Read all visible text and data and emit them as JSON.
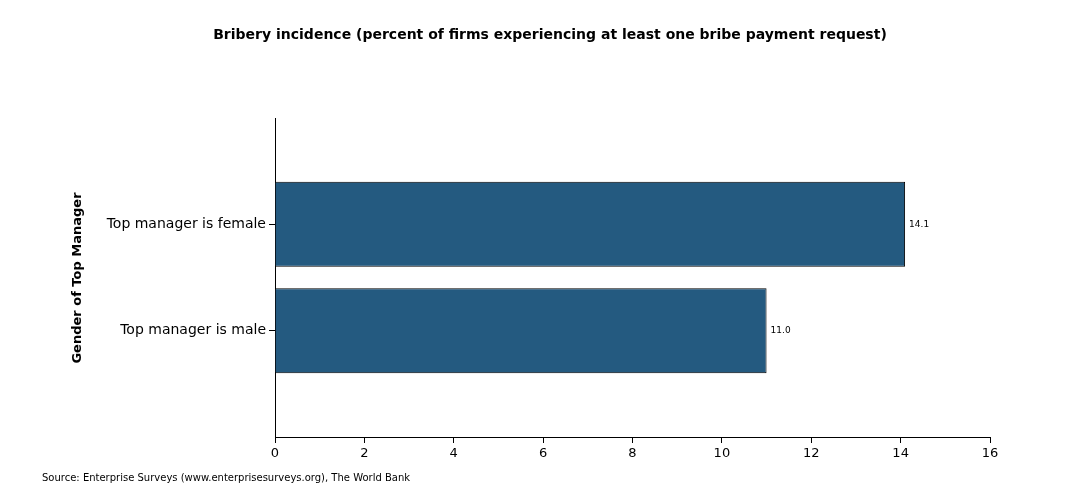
{
  "chart_data": {
    "type": "bar",
    "orientation": "horizontal",
    "title": "Bribery incidence (percent of firms experiencing at least one bribe payment request)",
    "ylabel": "Gender of Top Manager",
    "categories": [
      "Top manager is female",
      "Top manager is male"
    ],
    "values": [
      14.1,
      11.0
    ],
    "value_labels": [
      "14.1",
      "11.0"
    ],
    "color": "#245a80",
    "xlim": [
      0,
      16
    ],
    "xticks": [
      0,
      2,
      4,
      6,
      8,
      10,
      12,
      14,
      16
    ],
    "grid": false,
    "legend": false,
    "annotations": [
      "Source: Enterprise Surveys (www.enterprisesurveys.org), The World Bank"
    ]
  }
}
